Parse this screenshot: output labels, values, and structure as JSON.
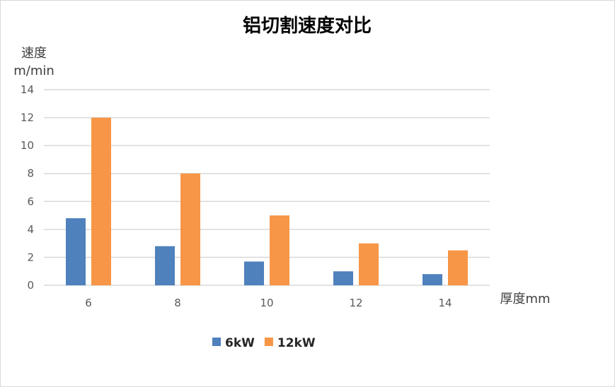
{
  "chart_data": {
    "type": "bar",
    "title": "铝切割速度对比",
    "ylabel": [
      "速度",
      "m/min"
    ],
    "xlabel": "厚度mm",
    "categories": [
      "6",
      "8",
      "10",
      "12",
      "14"
    ],
    "series": [
      {
        "name": "6kW",
        "values": [
          4.8,
          2.8,
          1.7,
          1.0,
          0.8
        ],
        "color": "#4F81BD"
      },
      {
        "name": "12kW",
        "values": [
          12,
          8,
          5,
          3,
          2.5
        ],
        "color": "#F79646"
      }
    ],
    "ylim": [
      0,
      14
    ],
    "yticks": [
      "0",
      "2",
      "4",
      "6",
      "8",
      "10",
      "12",
      "14"
    ],
    "grid": true,
    "legend": "bottom"
  }
}
